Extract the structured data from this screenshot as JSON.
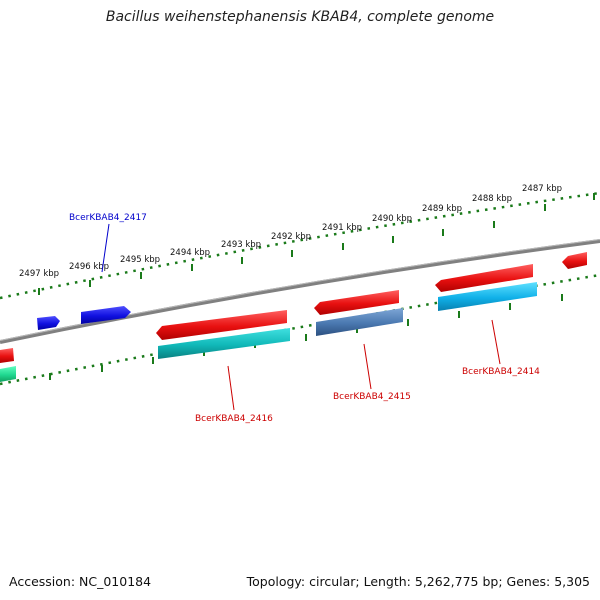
{
  "title": "Bacillus weihenstephanensis KBAB4, complete genome",
  "footer": {
    "accession": "Accession: NC_010184",
    "info": "Topology: circular; Length: 5,262,775 bp; Genes: 5,305"
  },
  "kbp_labels": [
    "2497 kbp",
    "2496 kbp",
    "2495 kbp",
    "2494 kbp",
    "2493 kbp",
    "2492 kbp",
    "2491 kbp",
    "2490 kbp",
    "2489 kbp",
    "2488 kbp",
    "2487 kbp"
  ],
  "gene_labels": {
    "g2417": "BcerKBAB4_2417",
    "g2416": "BcerKBAB4_2416",
    "g2415": "BcerKBAB4_2415",
    "g2414": "BcerKBAB4_2414"
  },
  "colors": {
    "backbone": "#808080",
    "tick_track": "#1a7a1a",
    "forward_gene": "#1010dd",
    "reverse_gene": "#e01010",
    "teal_feature": "#18c0c0",
    "steel_feature": "#4a78b0",
    "sky_feature": "#18b8e8",
    "green_feature": "#20d890",
    "label_forward": "#0000cc",
    "label_reverse": "#cc0000"
  }
}
